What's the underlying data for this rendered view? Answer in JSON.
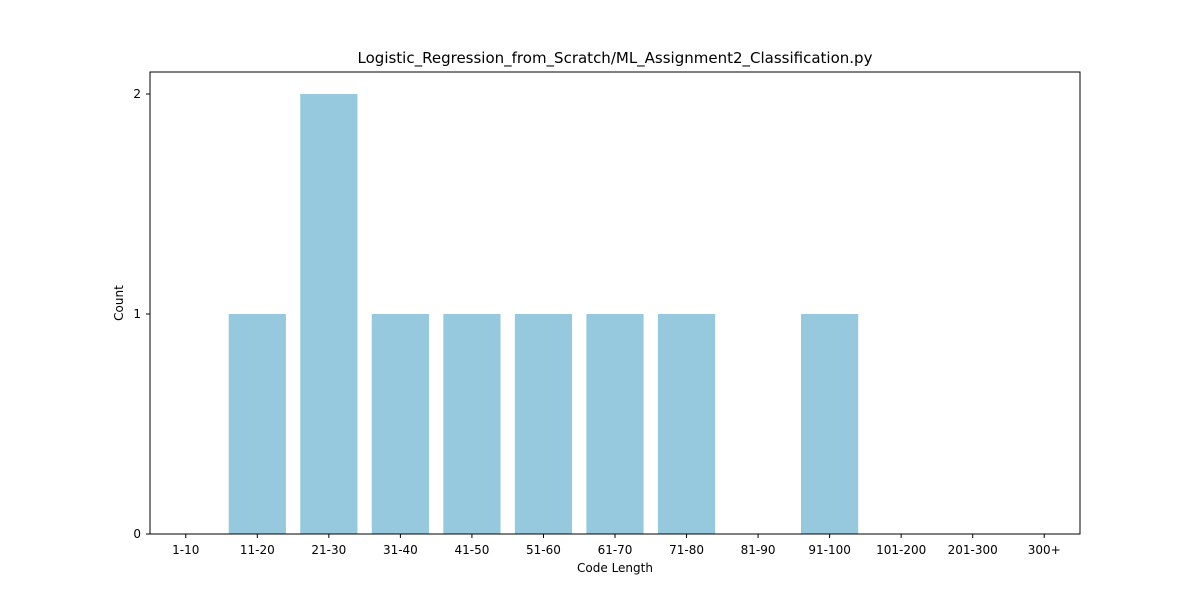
{
  "chart_data": {
    "type": "bar",
    "title": "Logistic_Regression_from_Scratch/ML_Assignment2_Classification.py",
    "xlabel": "Code Length",
    "ylabel": "Count",
    "categories": [
      "1-10",
      "11-20",
      "21-30",
      "31-40",
      "41-50",
      "51-60",
      "61-70",
      "71-80",
      "81-90",
      "91-100",
      "101-200",
      "201-300",
      "300+"
    ],
    "values": [
      0,
      1,
      2,
      1,
      1,
      1,
      1,
      1,
      0,
      1,
      0,
      0,
      0
    ],
    "ylim": [
      0,
      2.1
    ],
    "yticks": [
      0,
      1,
      2
    ],
    "grid": false,
    "bar_color": "#96c9dd"
  }
}
